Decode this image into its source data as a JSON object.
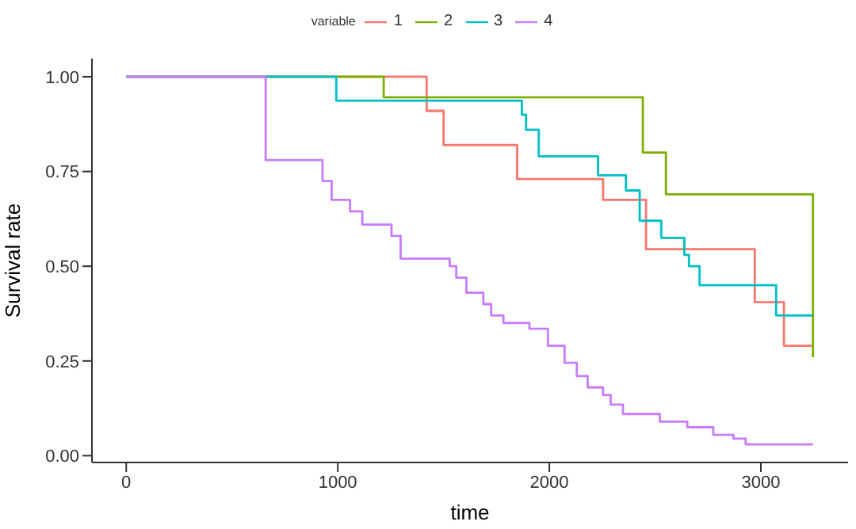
{
  "chart_data": {
    "type": "step",
    "xlabel": "time",
    "ylabel": "Survival rate",
    "legend_title": "variable",
    "legend": "top",
    "marker": "none",
    "line_style": "solid",
    "xlim": [
      -162,
      3412
    ],
    "ylim": [
      -0.018,
      1.048
    ],
    "xticks": [
      0,
      1000,
      2000,
      3000
    ],
    "yticks": [
      {
        "value": 0,
        "label": "0.00"
      },
      {
        "value": 0.25,
        "label": "0.25"
      },
      {
        "value": 0.5,
        "label": "0.50"
      },
      {
        "value": 0.75,
        "label": "0.75"
      },
      {
        "value": 1,
        "label": "1.00"
      }
    ],
    "series": [
      {
        "name": "1",
        "color": "#f8766d",
        "x": [
          0,
          1420,
          1500,
          1848,
          2254,
          2457,
          2971,
          3109,
          3246
        ],
        "values": [
          1,
          0.91,
          0.82,
          0.73,
          0.675,
          0.545,
          0.405,
          0.29,
          0.29
        ]
      },
      {
        "name": "2",
        "color": "#7cae00",
        "x": [
          0,
          1217,
          2442,
          2551,
          3246
        ],
        "values": [
          1,
          0.946,
          0.8,
          0.69,
          0.26
        ]
      },
      {
        "name": "3",
        "color": "#00bfc4",
        "x": [
          0,
          993,
          1870,
          1890,
          1950,
          2230,
          2362,
          2427,
          2529,
          2638,
          2660,
          2710,
          3072,
          3246
        ],
        "values": [
          1,
          0.937,
          0.9,
          0.86,
          0.79,
          0.74,
          0.7,
          0.62,
          0.575,
          0.53,
          0.5,
          0.45,
          0.37,
          0.37
        ]
      },
      {
        "name": "4",
        "color": "#c77cff",
        "x": [
          0,
          659,
          928,
          971,
          1058,
          1116,
          1254,
          1297,
          1529,
          1560,
          1608,
          1688,
          1725,
          1783,
          1906,
          1993,
          2072,
          2130,
          2181,
          2254,
          2290,
          2348,
          2522,
          2652,
          2775,
          2870,
          2928,
          3246
        ],
        "values": [
          1,
          0.78,
          0.725,
          0.675,
          0.645,
          0.61,
          0.58,
          0.52,
          0.5,
          0.47,
          0.43,
          0.4,
          0.37,
          0.35,
          0.335,
          0.29,
          0.245,
          0.21,
          0.18,
          0.16,
          0.135,
          0.11,
          0.09,
          0.075,
          0.055,
          0.045,
          0.03,
          0.03
        ]
      }
    ]
  }
}
